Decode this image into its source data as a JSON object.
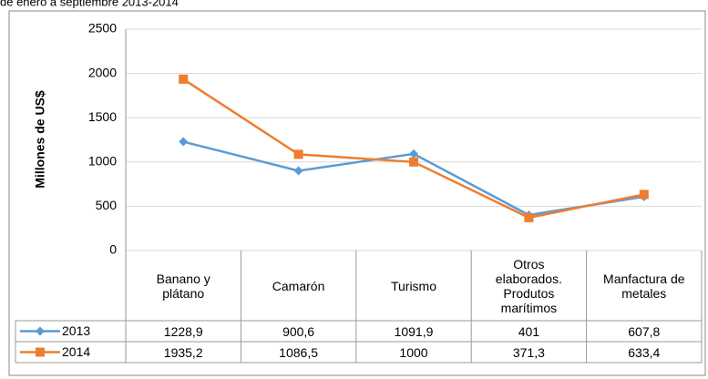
{
  "chart_data": {
    "type": "line",
    "title": "de enero a septiembre 2013-2014",
    "y_label": "Millones de US$",
    "categories": [
      "Banano y plátano",
      "Camarón",
      "Turismo",
      "Otros elaborados. Produtos marítimos",
      "Manfactura de metales"
    ],
    "series": [
      {
        "name": "2013",
        "color": "#5b9bd5",
        "marker": "diamond",
        "values": [
          1228.9,
          900.6,
          1091.9,
          401,
          607.8
        ],
        "value_labels": [
          "1228,9",
          "900,6",
          "1091,9",
          "401",
          "607,8"
        ]
      },
      {
        "name": "2014",
        "color": "#ed7d31",
        "marker": "square",
        "values": [
          1935.2,
          1086.5,
          1000,
          371.3,
          633.4
        ],
        "value_labels": [
          "1935,2",
          "1086,5",
          "1000",
          "371,3",
          "633,4"
        ]
      }
    ],
    "ylim": [
      0,
      2500
    ],
    "yticks": [
      0,
      500,
      1000,
      1500,
      2000,
      2500
    ],
    "grid": true
  }
}
